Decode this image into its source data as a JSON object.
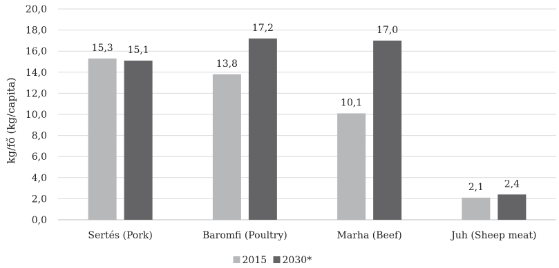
{
  "chart_data": {
    "type": "bar",
    "title": "",
    "xlabel": "",
    "ylabel": "kg/fő (kg/capita)",
    "ylim": [
      0,
      20
    ],
    "yticks": [
      "0,0",
      "2,0",
      "4,0",
      "6,0",
      "8,0",
      "10,0",
      "12,0",
      "14,0",
      "16,0",
      "18,0",
      "20,0"
    ],
    "grid": true,
    "legend_position": "bottom",
    "categories": [
      "Sertés (Pork)",
      "Baromfi (Poultry)",
      "Marha (Beef)",
      "Juh (Sheep meat)"
    ],
    "series": [
      {
        "name": "2015",
        "color": "#b7b8ba",
        "values": [
          15.3,
          13.8,
          10.1,
          2.1
        ],
        "labels": [
          "15,3",
          "13,8",
          "10,1",
          "2,1"
        ]
      },
      {
        "name": "2030*",
        "color": "#646466",
        "values": [
          15.1,
          17.2,
          17.0,
          2.4
        ],
        "labels": [
          "15,1",
          "17,2",
          "17,0",
          "2,4"
        ]
      }
    ]
  }
}
